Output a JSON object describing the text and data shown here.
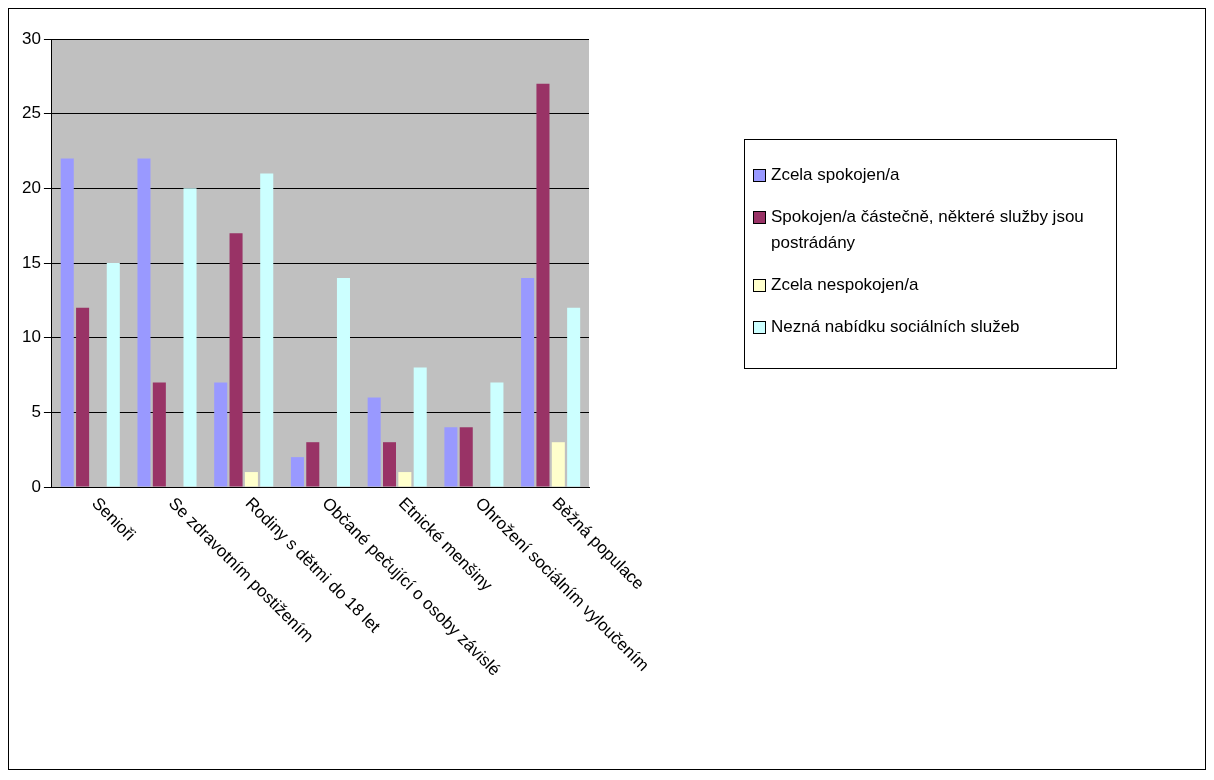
{
  "chart_data": {
    "type": "bar",
    "categories": [
      "Senioři",
      "Se zdravotním postižením",
      "Rodiny s dětmi do 18 let",
      "Občané pečující o osoby závislé",
      "Etnické menšiny",
      "Ohrožení sociálním vyloučením",
      "Běžná populace"
    ],
    "series": [
      {
        "name": "Zcela spokojen/a",
        "color": "#9999ff",
        "values": [
          22,
          22,
          7,
          2,
          6,
          4,
          14
        ]
      },
      {
        "name": "Spokojen/a částečně, některé služby jsou postrádány",
        "color": "#993366",
        "values": [
          12,
          7,
          17,
          3,
          3,
          4,
          27
        ]
      },
      {
        "name": "Zcela nespokojen/a",
        "color": "#ffffcc",
        "values": [
          0,
          0,
          1,
          0,
          1,
          0,
          3
        ]
      },
      {
        "name": "Nezná nabídku sociálních služeb",
        "color": "#ccffff",
        "values": [
          15,
          20,
          21,
          14,
          8,
          7,
          12
        ]
      }
    ],
    "ylim": [
      0,
      30
    ],
    "yticks": [
      0,
      5,
      10,
      15,
      20,
      25,
      30
    ],
    "grid": "y",
    "legend": "right"
  }
}
